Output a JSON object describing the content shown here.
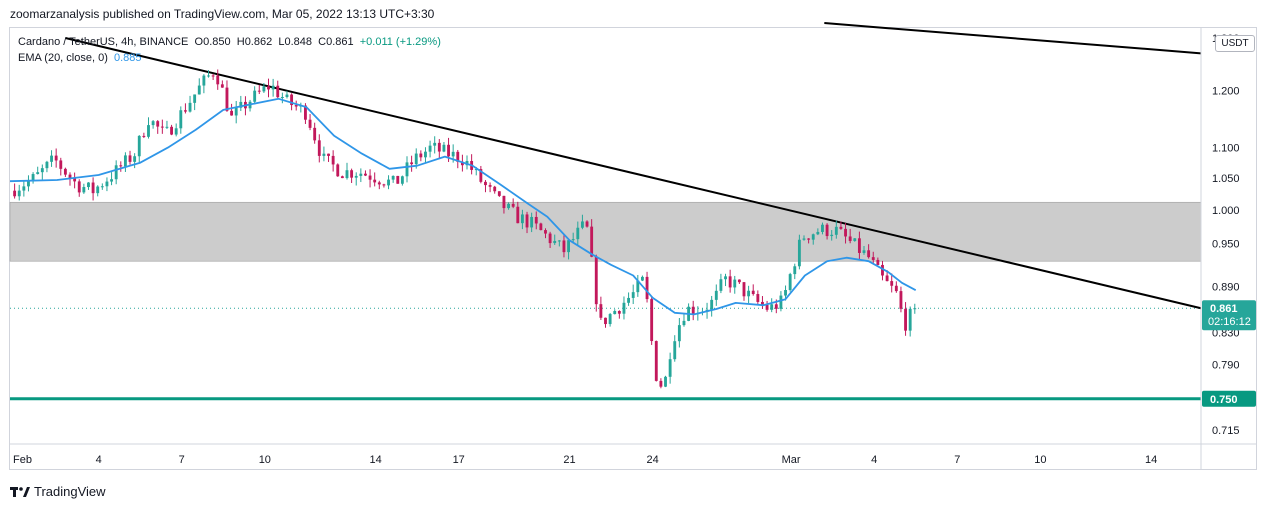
{
  "header": {
    "text": "zoomarzanalysis published on TradingView.com, Mar 05, 2022 13:13 UTC+3:30"
  },
  "legend": {
    "symbol": "Cardano / TetherUS, 4h, BINANCE",
    "open_label": "O",
    "open": "0.850",
    "high_label": "H",
    "high": "0.862",
    "low_label": "L",
    "low": "0.848",
    "close_label": "C",
    "close": "0.861",
    "change": "+0.011 (+1.29%)",
    "ema_label": "EMA (20, close, 0)",
    "ema_value": "0.885"
  },
  "axis": {
    "unit": "USDT",
    "price_badge": "0.861",
    "countdown": "02:16:12",
    "support_badge": "0.750"
  },
  "footer": {
    "logo_text": "TradingView"
  },
  "colors": {
    "up": "#26a69a",
    "down": "#c2185b",
    "ema": "#2f96e8",
    "zone": "#cccccc",
    "support": "#089981",
    "trend": "#000000"
  },
  "chart_data": {
    "type": "candlestick",
    "y_scale": "log",
    "ylim": [
      0.7,
      1.32
    ],
    "y_ticks": [
      {
        "v": 1.3,
        "label": "1.300"
      },
      {
        "v": 1.2,
        "label": "1.200"
      },
      {
        "v": 1.1,
        "label": "1.100"
      },
      {
        "v": 1.05,
        "label": "1.050"
      },
      {
        "v": 1.0,
        "label": "1.000"
      },
      {
        "v": 0.95,
        "label": "0.950"
      },
      {
        "v": 0.89,
        "label": "0.890"
      },
      {
        "v": 0.83,
        "label": "0.830"
      },
      {
        "v": 0.79,
        "label": "0.790"
      },
      {
        "v": 0.715,
        "label": "0.715"
      }
    ],
    "x_ticks": [
      {
        "d": 0,
        "label": "Feb"
      },
      {
        "d": 3,
        "label": "4"
      },
      {
        "d": 6,
        "label": "7"
      },
      {
        "d": 9,
        "label": "10"
      },
      {
        "d": 13,
        "label": "14"
      },
      {
        "d": 16,
        "label": "17"
      },
      {
        "d": 20,
        "label": "21"
      },
      {
        "d": 23,
        "label": "24"
      },
      {
        "d": 28,
        "label": "Mar"
      },
      {
        "d": 31,
        "label": "4"
      },
      {
        "d": 34,
        "label": "7"
      },
      {
        "d": 37,
        "label": "10"
      },
      {
        "d": 41,
        "label": "14"
      }
    ],
    "x_range_days": [
      -0.2,
      42.8
    ],
    "last_day": 32.5,
    "zone": [
      0.925,
      1.012
    ],
    "support": 0.75,
    "last_price": 0.861,
    "trendline_1": [
      [
        1.8,
        1.3
      ],
      [
        42.8,
        0.861
      ]
    ],
    "trendline_2": [
      [
        29.2,
        1.33
      ],
      [
        42.8,
        1.27
      ]
    ],
    "anchors": [
      [
        -0.2,
        1.03
      ],
      [
        0.7,
        1.05
      ],
      [
        1.4,
        1.08
      ],
      [
        2.2,
        1.04
      ],
      [
        2.8,
        1.03
      ],
      [
        3.6,
        1.06
      ],
      [
        4.3,
        1.09
      ],
      [
        4.8,
        1.15
      ],
      [
        5.4,
        1.12
      ],
      [
        6.0,
        1.16
      ],
      [
        6.7,
        1.21
      ],
      [
        7.2,
        1.24
      ],
      [
        7.8,
        1.15
      ],
      [
        8.4,
        1.18
      ],
      [
        9.2,
        1.21
      ],
      [
        9.8,
        1.18
      ],
      [
        10.5,
        1.16
      ],
      [
        11.1,
        1.08
      ],
      [
        11.8,
        1.06
      ],
      [
        12.4,
        1.06
      ],
      [
        13.1,
        1.05
      ],
      [
        13.7,
        1.04
      ],
      [
        14.4,
        1.08
      ],
      [
        15.0,
        1.1
      ],
      [
        15.6,
        1.09
      ],
      [
        16.2,
        1.08
      ],
      [
        16.9,
        1.04
      ],
      [
        17.5,
        1.01
      ],
      [
        18.1,
        0.99
      ],
      [
        18.6,
        0.98
      ],
      [
        19.2,
        0.96
      ],
      [
        19.8,
        0.94
      ],
      [
        20.2,
        0.96
      ],
      [
        20.6,
        0.98
      ],
      [
        21.1,
        0.84
      ],
      [
        21.7,
        0.86
      ],
      [
        22.3,
        0.88
      ],
      [
        22.7,
        0.9
      ],
      [
        23.1,
        0.78
      ],
      [
        23.4,
        0.76
      ],
      [
        23.7,
        0.82
      ],
      [
        24.2,
        0.86
      ],
      [
        24.8,
        0.86
      ],
      [
        25.2,
        0.87
      ],
      [
        25.6,
        0.9
      ],
      [
        26.1,
        0.89
      ],
      [
        26.7,
        0.87
      ],
      [
        27.2,
        0.86
      ],
      [
        27.7,
        0.87
      ],
      [
        28.0,
        0.91
      ],
      [
        28.4,
        0.96
      ],
      [
        29.0,
        0.97
      ],
      [
        29.6,
        0.97
      ],
      [
        30.2,
        0.95
      ],
      [
        30.8,
        0.93
      ],
      [
        31.3,
        0.9
      ],
      [
        31.8,
        0.88
      ],
      [
        32.1,
        0.84
      ],
      [
        32.5,
        0.861
      ]
    ],
    "ema": [
      [
        -0.2,
        1.045
      ],
      [
        1.5,
        1.047
      ],
      [
        3.0,
        1.055
      ],
      [
        4.5,
        1.075
      ],
      [
        5.5,
        1.1
      ],
      [
        6.5,
        1.13
      ],
      [
        7.5,
        1.165
      ],
      [
        8.5,
        1.175
      ],
      [
        9.5,
        1.185
      ],
      [
        10.5,
        1.17
      ],
      [
        11.5,
        1.12
      ],
      [
        12.5,
        1.09
      ],
      [
        13.5,
        1.065
      ],
      [
        14.5,
        1.07
      ],
      [
        15.5,
        1.085
      ],
      [
        16.5,
        1.07
      ],
      [
        17.5,
        1.04
      ],
      [
        18.5,
        1.01
      ],
      [
        19.2,
        0.99
      ],
      [
        20.0,
        0.955
      ],
      [
        20.8,
        0.935
      ],
      [
        21.5,
        0.92
      ],
      [
        22.3,
        0.905
      ],
      [
        23.0,
        0.875
      ],
      [
        23.8,
        0.855
      ],
      [
        24.5,
        0.853
      ],
      [
        25.3,
        0.86
      ],
      [
        26.0,
        0.868
      ],
      [
        27.0,
        0.865
      ],
      [
        27.8,
        0.873
      ],
      [
        28.5,
        0.905
      ],
      [
        29.3,
        0.925
      ],
      [
        30.0,
        0.93
      ],
      [
        30.8,
        0.925
      ],
      [
        31.5,
        0.91
      ],
      [
        32.0,
        0.895
      ],
      [
        32.5,
        0.885
      ]
    ]
  }
}
